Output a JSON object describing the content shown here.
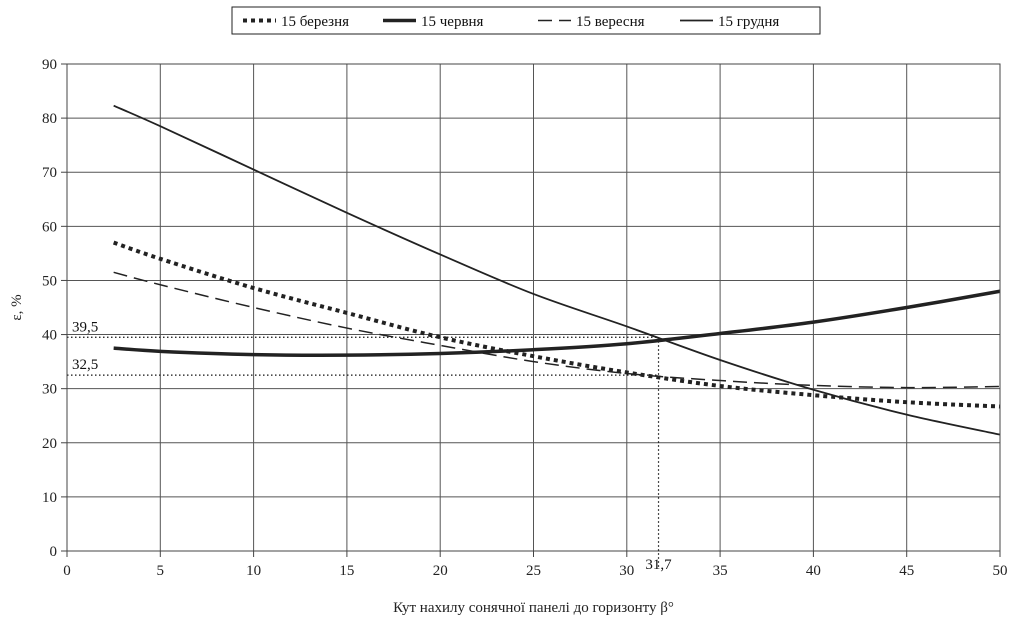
{
  "chart_data": {
    "type": "line",
    "title": "",
    "xlabel": "Кут нахилу сонячної панелі до горизонту β°",
    "ylabel": "ε, %",
    "xlim": [
      0,
      50
    ],
    "ylim": [
      0,
      90
    ],
    "x_ticks": [
      0,
      5,
      10,
      15,
      20,
      25,
      30,
      35,
      40,
      45,
      50
    ],
    "y_ticks": [
      0,
      10,
      20,
      30,
      40,
      50,
      60,
      70,
      80,
      90
    ],
    "grid": true,
    "legend_position": "top-center",
    "series": [
      {
        "name": "15 березня",
        "style": "dotted-bold",
        "color": "#222222",
        "x": [
          2.5,
          5,
          10,
          15,
          20,
          25,
          30,
          35,
          40,
          45,
          50
        ],
        "y": [
          57,
          54,
          48.6,
          44,
          39.5,
          36,
          33,
          30.5,
          28.8,
          27.5,
          26.7
        ]
      },
      {
        "name": "15 червня",
        "style": "solid-bold",
        "color": "#222222",
        "x": [
          2.5,
          5,
          10,
          15,
          20,
          25,
          30,
          35,
          40,
          45,
          50
        ],
        "y": [
          37.5,
          36.9,
          36.3,
          36.2,
          36.5,
          37.2,
          38.3,
          40.2,
          42.3,
          45,
          48
        ]
      },
      {
        "name": "15 вересня",
        "style": "dashed",
        "color": "#222222",
        "x": [
          2.5,
          5,
          10,
          15,
          20,
          25,
          30,
          35,
          40,
          45,
          50
        ],
        "y": [
          51.5,
          49.2,
          45,
          41.2,
          38,
          35,
          32.8,
          31.5,
          30.6,
          30.2,
          30.4
        ]
      },
      {
        "name": "15 грудня",
        "style": "solid-thin",
        "color": "#222222",
        "x": [
          2.5,
          5,
          10,
          15,
          20,
          25,
          30,
          35,
          40,
          45,
          50
        ],
        "y": [
          82.3,
          78.5,
          70.5,
          62.5,
          54.8,
          47.5,
          41.5,
          35.3,
          29.8,
          25.2,
          21.5
        ]
      }
    ],
    "annotations": {
      "hline_upper": {
        "y": 39.5,
        "label": "39,5"
      },
      "hline_lower": {
        "y": 32.5,
        "label": "32,5"
      },
      "vline": {
        "x": 31.7,
        "label": "31,7"
      }
    }
  }
}
